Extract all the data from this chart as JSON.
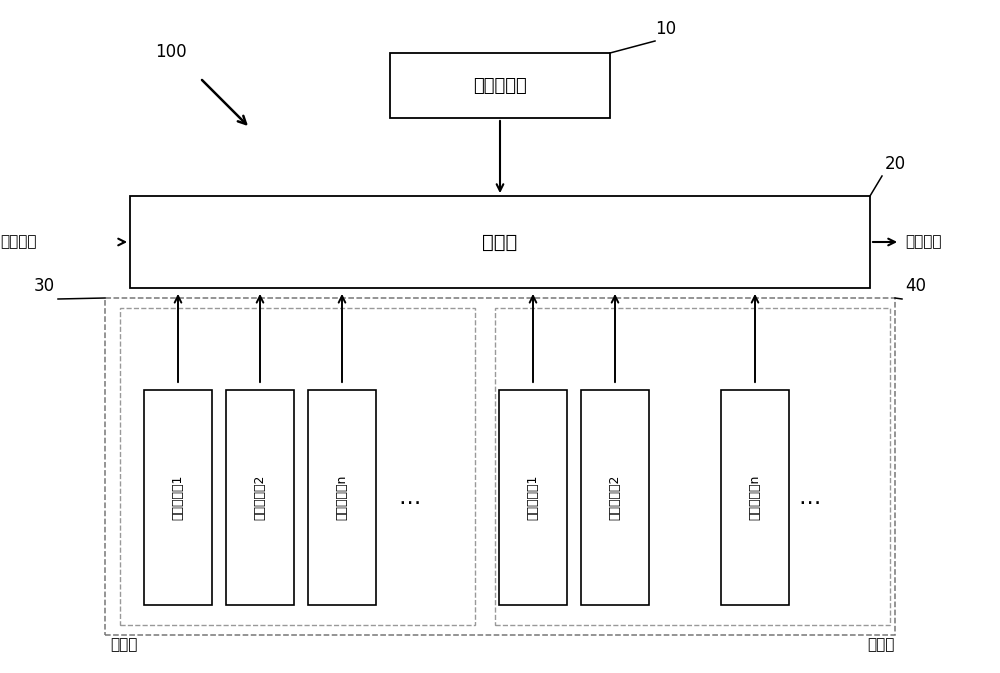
{
  "bg_color": "#ffffff",
  "text_color": "#000000",
  "label_10": "10",
  "label_20": "20",
  "label_30": "30",
  "label_40": "40",
  "label_100": "100",
  "strategy_box_text": "策略生成器",
  "scheduler_box_text": "调度器",
  "service_request": "服务请求",
  "service_response": "服务响应",
  "work_pool_label": "工作池",
  "candidate_pool_label": "备选池",
  "executor_labels_left": [
    "异构执行体1",
    "异构执行体2",
    "异构执行体n"
  ],
  "executor_labels_right": [
    "异构执行体1",
    "异构执行体2",
    "异构执行体n"
  ],
  "dots_label": "…"
}
